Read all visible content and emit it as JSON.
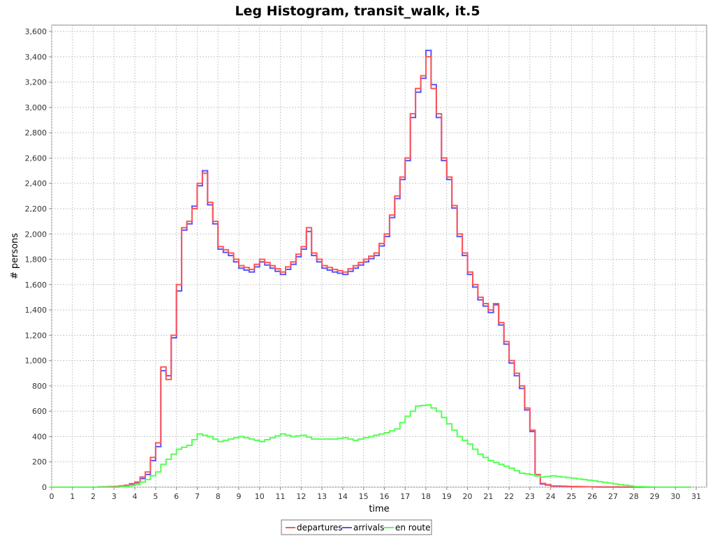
{
  "chart_data": {
    "type": "line",
    "title": "Leg Histogram, transit_walk, it.5",
    "xlabel": "time",
    "ylabel": "# persons",
    "xlim": [
      0,
      31.5
    ],
    "ylim": [
      0,
      3650
    ],
    "x_ticks": [
      0,
      1,
      2,
      3,
      4,
      5,
      6,
      7,
      8,
      9,
      10,
      11,
      12,
      13,
      14,
      15,
      16,
      17,
      18,
      19,
      20,
      21,
      22,
      23,
      24,
      25,
      26,
      27,
      28,
      29,
      30,
      31
    ],
    "y_ticks": [
      0,
      200,
      400,
      600,
      800,
      1000,
      1200,
      1400,
      1600,
      1800,
      2000,
      2200,
      2400,
      2600,
      2800,
      3000,
      3200,
      3400,
      3600
    ],
    "y_tick_labels": [
      "0",
      "200",
      "400",
      "600",
      "800",
      "1,000",
      "1,200",
      "1,400",
      "1,600",
      "1,800",
      "2,000",
      "2,200",
      "2,400",
      "2,600",
      "2,800",
      "3,000",
      "3,200",
      "3,400",
      "3,600"
    ],
    "grid": true,
    "legend_position": "bottom",
    "step": 0.25,
    "series": [
      {
        "name": "departures",
        "color": "#ff5555",
        "x": [
          0,
          1,
          2,
          3,
          3.5,
          4,
          4.5,
          5,
          5.25,
          5.5,
          5.75,
          6,
          6.25,
          6.5,
          6.75,
          7,
          7.25,
          7.5,
          7.75,
          8,
          8.5,
          9,
          9.5,
          10,
          10.5,
          11,
          11.5,
          12,
          12.25,
          12.5,
          13,
          13.5,
          14,
          14.5,
          15,
          15.5,
          16,
          16.5,
          17,
          17.25,
          17.5,
          17.75,
          18,
          18.25,
          18.5,
          18.75,
          19,
          19.5,
          20,
          20.5,
          21,
          21.25,
          21.5,
          22,
          22.5,
          23,
          23.25,
          23.5,
          24,
          25,
          26,
          27,
          28,
          30
        ],
        "values": [
          0,
          0,
          0,
          5,
          15,
          40,
          120,
          350,
          950,
          850,
          1200,
          1600,
          2050,
          2100,
          2200,
          2400,
          2480,
          2250,
          2100,
          1900,
          1850,
          1750,
          1720,
          1800,
          1750,
          1700,
          1780,
          1900,
          2050,
          1850,
          1750,
          1720,
          1700,
          1750,
          1800,
          1850,
          2000,
          2300,
          2600,
          2950,
          3150,
          3250,
          3400,
          3150,
          2950,
          2600,
          2450,
          2000,
          1700,
          1500,
          1400,
          1450,
          1300,
          1000,
          800,
          450,
          100,
          30,
          10,
          5,
          2,
          1,
          0,
          0
        ]
      },
      {
        "name": "arrivals",
        "color": "#5555ff",
        "x": [
          0,
          1,
          2,
          3,
          3.5,
          4,
          4.5,
          5,
          5.25,
          5.5,
          5.75,
          6,
          6.25,
          6.5,
          6.75,
          7,
          7.25,
          7.5,
          7.75,
          8,
          8.5,
          9,
          9.5,
          10,
          10.5,
          11,
          11.5,
          12,
          12.25,
          12.5,
          13,
          13.5,
          14,
          14.5,
          15,
          15.5,
          16,
          16.5,
          17,
          17.25,
          17.5,
          17.75,
          18,
          18.25,
          18.5,
          18.75,
          19,
          19.5,
          20,
          20.5,
          21,
          21.25,
          21.5,
          22,
          22.5,
          23,
          23.25,
          23.5,
          24,
          25,
          26,
          27,
          28,
          30
        ],
        "values": [
          0,
          0,
          0,
          4,
          12,
          35,
          100,
          320,
          920,
          880,
          1180,
          1550,
          2030,
          2080,
          2220,
          2380,
          2500,
          2230,
          2080,
          1880,
          1830,
          1730,
          1700,
          1780,
          1730,
          1680,
          1760,
          1880,
          2020,
          1830,
          1730,
          1700,
          1680,
          1730,
          1780,
          1830,
          1980,
          2280,
          2580,
          2920,
          3120,
          3230,
          3450,
          3180,
          2920,
          2580,
          2430,
          1980,
          1680,
          1480,
          1380,
          1440,
          1280,
          980,
          780,
          440,
          90,
          25,
          8,
          4,
          2,
          1,
          0,
          0
        ]
      },
      {
        "name": "en route",
        "color": "#55ff55",
        "x": [
          0,
          3,
          3.5,
          4,
          4.5,
          5,
          5.25,
          5.5,
          6,
          6.5,
          7,
          7.5,
          8,
          8.5,
          9,
          9.5,
          10,
          10.5,
          11,
          11.5,
          12,
          12.5,
          13,
          13.5,
          14,
          14.5,
          15,
          15.5,
          16,
          16.5,
          17,
          17.5,
          18,
          18.5,
          19,
          19.5,
          20,
          20.5,
          21,
          21.5,
          22,
          22.5,
          23,
          23.5,
          24,
          25,
          26,
          27,
          28,
          29,
          30
        ],
        "values": [
          0,
          0,
          5,
          20,
          60,
          120,
          180,
          220,
          300,
          330,
          420,
          400,
          360,
          380,
          400,
          380,
          360,
          390,
          420,
          400,
          410,
          380,
          380,
          380,
          390,
          370,
          390,
          410,
          430,
          460,
          560,
          640,
          650,
          600,
          500,
          400,
          340,
          260,
          210,
          180,
          150,
          110,
          100,
          80,
          90,
          70,
          50,
          25,
          5,
          0,
          0
        ]
      }
    ]
  }
}
